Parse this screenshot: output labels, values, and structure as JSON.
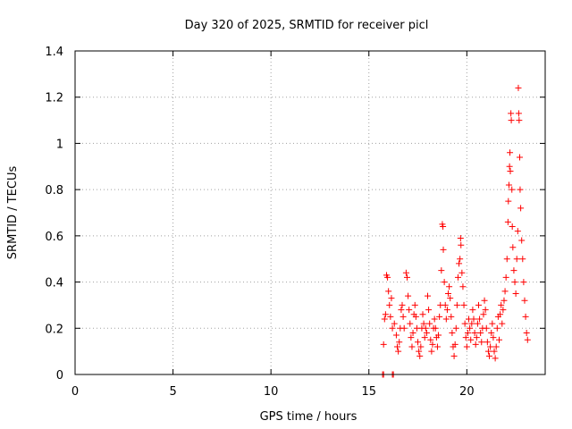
{
  "chart_data": {
    "type": "scatter",
    "title": "Day 320 of 2025, SRMTID for receiver picl",
    "xlabel": "GPS time / hours",
    "ylabel": "SRMTID / TECUs",
    "xlim": [
      0,
      24
    ],
    "ylim": [
      0,
      1.4
    ],
    "x_ticks": [
      0,
      5,
      10,
      15,
      20
    ],
    "x_tick_labels": [
      "0",
      "5",
      "10",
      "15",
      "20"
    ],
    "y_ticks": [
      0,
      0.2,
      0.4,
      0.6,
      0.8,
      1.0,
      1.2,
      1.4
    ],
    "y_tick_labels": [
      "0",
      "0.2",
      "0.4",
      "0.6",
      "0.8",
      "1",
      "1.2",
      "1.4"
    ],
    "grid": true,
    "marker": "+",
    "series_color": "#ff0000",
    "series": [
      {
        "name": "SRMTID",
        "points": [
          [
            15.7,
            0.0
          ],
          [
            15.75,
            0.0
          ],
          [
            16.2,
            0.0
          ],
          [
            16.25,
            0.0
          ],
          [
            15.75,
            0.13
          ],
          [
            15.8,
            0.24
          ],
          [
            15.85,
            0.26
          ],
          [
            15.9,
            0.43
          ],
          [
            15.95,
            0.42
          ],
          [
            16.0,
            0.36
          ],
          [
            16.05,
            0.3
          ],
          [
            16.1,
            0.25
          ],
          [
            16.15,
            0.33
          ],
          [
            16.2,
            0.2
          ],
          [
            16.3,
            0.22
          ],
          [
            16.4,
            0.17
          ],
          [
            16.45,
            0.12
          ],
          [
            16.5,
            0.1
          ],
          [
            16.55,
            0.14
          ],
          [
            16.6,
            0.2
          ],
          [
            16.65,
            0.28
          ],
          [
            16.7,
            0.3
          ],
          [
            16.75,
            0.25
          ],
          [
            16.8,
            0.2
          ],
          [
            16.9,
            0.44
          ],
          [
            16.95,
            0.42
          ],
          [
            17.0,
            0.34
          ],
          [
            17.05,
            0.28
          ],
          [
            17.1,
            0.22
          ],
          [
            17.15,
            0.16
          ],
          [
            17.2,
            0.12
          ],
          [
            17.25,
            0.18
          ],
          [
            17.3,
            0.26
          ],
          [
            17.35,
            0.3
          ],
          [
            17.4,
            0.25
          ],
          [
            17.45,
            0.2
          ],
          [
            17.5,
            0.14
          ],
          [
            17.55,
            0.1
          ],
          [
            17.6,
            0.08
          ],
          [
            17.65,
            0.12
          ],
          [
            17.7,
            0.2
          ],
          [
            17.75,
            0.26
          ],
          [
            17.8,
            0.22
          ],
          [
            17.85,
            0.16
          ],
          [
            17.9,
            0.2
          ],
          [
            17.95,
            0.18
          ],
          [
            18.0,
            0.34
          ],
          [
            18.05,
            0.28
          ],
          [
            18.1,
            0.22
          ],
          [
            18.15,
            0.15
          ],
          [
            18.2,
            0.1
          ],
          [
            18.25,
            0.13
          ],
          [
            18.3,
            0.2
          ],
          [
            18.35,
            0.24
          ],
          [
            18.4,
            0.2
          ],
          [
            18.45,
            0.16
          ],
          [
            18.5,
            0.12
          ],
          [
            18.55,
            0.17
          ],
          [
            18.6,
            0.25
          ],
          [
            18.65,
            0.3
          ],
          [
            18.7,
            0.45
          ],
          [
            18.75,
            0.65
          ],
          [
            18.78,
            0.64
          ],
          [
            18.8,
            0.54
          ],
          [
            18.85,
            0.4
          ],
          [
            18.9,
            0.3
          ],
          [
            18.95,
            0.24
          ],
          [
            19.0,
            0.28
          ],
          [
            19.05,
            0.35
          ],
          [
            19.1,
            0.38
          ],
          [
            19.15,
            0.33
          ],
          [
            19.2,
            0.25
          ],
          [
            19.25,
            0.18
          ],
          [
            19.3,
            0.12
          ],
          [
            19.35,
            0.08
          ],
          [
            19.4,
            0.13
          ],
          [
            19.45,
            0.2
          ],
          [
            19.5,
            0.3
          ],
          [
            19.55,
            0.42
          ],
          [
            19.6,
            0.48
          ],
          [
            19.65,
            0.5
          ],
          [
            19.68,
            0.59
          ],
          [
            19.7,
            0.56
          ],
          [
            19.75,
            0.44
          ],
          [
            19.8,
            0.38
          ],
          [
            19.85,
            0.3
          ],
          [
            19.9,
            0.22
          ],
          [
            19.95,
            0.16
          ],
          [
            20.0,
            0.12
          ],
          [
            20.05,
            0.18
          ],
          [
            20.1,
            0.24
          ],
          [
            20.15,
            0.2
          ],
          [
            20.2,
            0.15
          ],
          [
            20.25,
            0.22
          ],
          [
            20.3,
            0.28
          ],
          [
            20.35,
            0.24
          ],
          [
            20.4,
            0.18
          ],
          [
            20.45,
            0.13
          ],
          [
            20.5,
            0.16
          ],
          [
            20.55,
            0.22
          ],
          [
            20.6,
            0.3
          ],
          [
            20.65,
            0.24
          ],
          [
            20.7,
            0.18
          ],
          [
            20.75,
            0.14
          ],
          [
            20.8,
            0.2
          ],
          [
            20.85,
            0.26
          ],
          [
            20.9,
            0.32
          ],
          [
            20.95,
            0.28
          ],
          [
            21.0,
            0.2
          ],
          [
            21.05,
            0.14
          ],
          [
            21.1,
            0.1
          ],
          [
            21.15,
            0.08
          ],
          [
            21.2,
            0.12
          ],
          [
            21.25,
            0.18
          ],
          [
            21.3,
            0.22
          ],
          [
            21.35,
            0.16
          ],
          [
            21.4,
            0.1
          ],
          [
            21.45,
            0.07
          ],
          [
            21.5,
            0.12
          ],
          [
            21.55,
            0.2
          ],
          [
            21.6,
            0.25
          ],
          [
            21.65,
            0.15
          ],
          [
            21.7,
            0.26
          ],
          [
            21.75,
            0.3
          ],
          [
            21.8,
            0.22
          ],
          [
            21.85,
            0.28
          ],
          [
            21.9,
            0.32
          ],
          [
            21.95,
            0.36
          ],
          [
            22.0,
            0.42
          ],
          [
            22.05,
            0.5
          ],
          [
            22.1,
            0.66
          ],
          [
            22.12,
            0.75
          ],
          [
            22.15,
            0.82
          ],
          [
            22.18,
            0.9
          ],
          [
            22.2,
            0.96
          ],
          [
            22.22,
            0.88
          ],
          [
            22.25,
            1.13
          ],
          [
            22.27,
            1.1
          ],
          [
            22.3,
            0.8
          ],
          [
            22.32,
            0.64
          ],
          [
            22.35,
            0.55
          ],
          [
            22.4,
            0.45
          ],
          [
            22.45,
            0.4
          ],
          [
            22.5,
            0.35
          ],
          [
            22.55,
            0.5
          ],
          [
            22.6,
            0.62
          ],
          [
            22.63,
            1.24
          ],
          [
            22.65,
            1.13
          ],
          [
            22.67,
            1.1
          ],
          [
            22.7,
            0.94
          ],
          [
            22.72,
            0.8
          ],
          [
            22.75,
            0.72
          ],
          [
            22.8,
            0.58
          ],
          [
            22.85,
            0.5
          ],
          [
            22.9,
            0.4
          ],
          [
            22.95,
            0.32
          ],
          [
            23.0,
            0.25
          ],
          [
            23.05,
            0.18
          ],
          [
            23.1,
            0.15
          ]
        ]
      }
    ]
  }
}
